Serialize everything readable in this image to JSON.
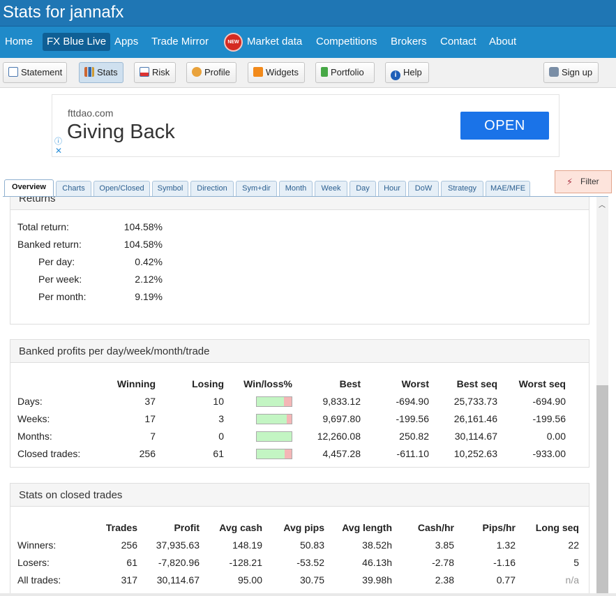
{
  "title": "Stats for jannafx",
  "mainnav": {
    "home": "Home",
    "live": "FX Blue Live",
    "apps": "Apps",
    "mirror": "Trade Mirror",
    "new_badge": "NEW",
    "market": "Market data",
    "competitions": "Competitions",
    "brokers": "Brokers",
    "contact": "Contact",
    "about": "About"
  },
  "toolbar": {
    "statement": "Statement",
    "stats": "Stats",
    "risk": "Risk",
    "profile": "Profile",
    "widgets": "Widgets",
    "portfolio": "Portfolio",
    "help": "Help",
    "signup": "Sign up"
  },
  "ad": {
    "domain": "fttdao.com",
    "headline": "Giving Back",
    "button": "OPEN",
    "info": "ⓘ",
    "close": "✕"
  },
  "tabs": [
    "Overview",
    "Charts",
    "Open/Closed",
    "Symbol",
    "Direction",
    "Sym+dir",
    "Month",
    "Week",
    "Day",
    "Hour",
    "DoW",
    "Strategy",
    "MAE/MFE"
  ],
  "filter": "Filter",
  "returns": {
    "heading": "Returns",
    "rows": [
      {
        "label": "Total return:",
        "value": "104.58%"
      },
      {
        "label": "Banked return:",
        "value": "104.58%"
      },
      {
        "label": "Per day:",
        "value": "0.42%"
      },
      {
        "label": "Per week:",
        "value": "2.12%"
      },
      {
        "label": "Per month:",
        "value": "9.19%"
      }
    ]
  },
  "banked": {
    "heading": "Banked profits per day/week/month/trade",
    "headers": [
      "",
      "Winning",
      "Losing",
      "Win/loss%",
      "Best",
      "Worst",
      "Best seq",
      "Worst seq"
    ],
    "rows": [
      {
        "label": "Days:",
        "winning": "37",
        "losing": "10",
        "win_ratio": 0.787,
        "best": "9,833.12",
        "worst": "-694.90",
        "best_seq": "25,733.73",
        "worst_seq": "-694.90"
      },
      {
        "label": "Weeks:",
        "winning": "17",
        "losing": "3",
        "win_ratio": 0.85,
        "best": "9,697.80",
        "worst": "-199.56",
        "best_seq": "26,161.46",
        "worst_seq": "-199.56"
      },
      {
        "label": "Months:",
        "winning": "7",
        "losing": "0",
        "win_ratio": 1.0,
        "best": "12,260.08",
        "worst": "250.82",
        "best_seq": "30,114.67",
        "worst_seq": "0.00"
      },
      {
        "label": "Closed trades:",
        "winning": "256",
        "losing": "61",
        "win_ratio": 0.808,
        "best": "4,457.28",
        "worst": "-611.10",
        "best_seq": "10,252.63",
        "worst_seq": "-933.00"
      }
    ]
  },
  "closed": {
    "heading": "Stats on closed trades",
    "headers": [
      "",
      "Trades",
      "Profit",
      "Avg cash",
      "Avg pips",
      "Avg length",
      "Cash/hr",
      "Pips/hr",
      "Long seq"
    ],
    "rows": [
      {
        "label": "Winners:",
        "trades": "256",
        "profit": "37,935.63",
        "avg_cash": "148.19",
        "avg_pips": "50.83",
        "avg_length": "38.52h",
        "cash_hr": "3.85",
        "pips_hr": "1.32",
        "long_seq": "22"
      },
      {
        "label": "Losers:",
        "trades": "61",
        "profit": "-7,820.96",
        "avg_cash": "-128.21",
        "avg_pips": "-53.52",
        "avg_length": "46.13h",
        "cash_hr": "-2.78",
        "pips_hr": "-1.16",
        "long_seq": "5"
      },
      {
        "label": "All trades:",
        "trades": "317",
        "profit": "30,114.67",
        "avg_cash": "95.00",
        "avg_pips": "30.75",
        "avg_length": "39.98h",
        "cash_hr": "2.38",
        "pips_hr": "0.77",
        "long_seq": "n/a"
      }
    ]
  }
}
